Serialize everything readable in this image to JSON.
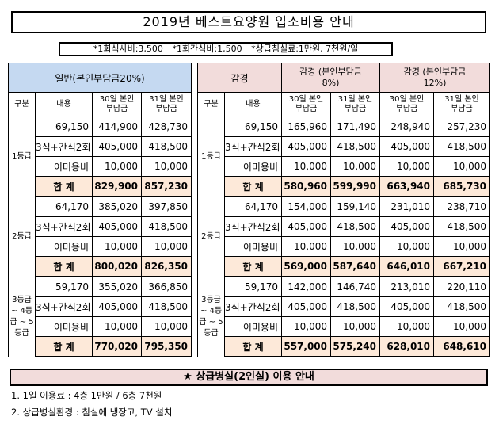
{
  "title": "2019년 베스트요양원 입소비용 안내",
  "notes": [
    "*1회식사비:3,500",
    "*1회간식비:1,500",
    "*상급침실료:1만원, 7천원/일"
  ],
  "left": {
    "group_header": "일반(본인부담금20%)",
    "col_headers": [
      "구분",
      "내용",
      "30일 본인부담금",
      "31일 본인부담금"
    ],
    "grades": [
      {
        "label": "1등급",
        "rows": [
          [
            "69,150",
            "414,900",
            "428,730"
          ],
          [
            "3식+간식2회",
            "405,000",
            "418,500"
          ],
          [
            "이미용비",
            "10,000",
            "10,000"
          ]
        ],
        "total": [
          "합 계",
          "829,900",
          "857,230"
        ]
      },
      {
        "label": "2등급",
        "rows": [
          [
            "64,170",
            "385,020",
            "397,850"
          ],
          [
            "3식+간식2회",
            "405,000",
            "418,500"
          ],
          [
            "이미용비",
            "10,000",
            "10,000"
          ]
        ],
        "total": [
          "합 계",
          "800,020",
          "826,350"
        ]
      },
      {
        "label": "3등급 ~ 4등급 ~ 5등급",
        "rows": [
          [
            "59,170",
            "355,020",
            "366,850"
          ],
          [
            "3식+간식2회",
            "405,000",
            "418,500"
          ],
          [
            "이미용비",
            "10,000",
            "10,000"
          ]
        ],
        "total": [
          "합 계",
          "770,020",
          "795,350"
        ]
      }
    ]
  },
  "right": {
    "group_header_main": "감경",
    "group_header_8": "감경 (본인부담금 8%)",
    "group_header_12": "감경 (본인부담금12%)",
    "col_headers": [
      "구분",
      "내용",
      "30일 본인부담금",
      "31일 본인부담금",
      "30일 본인부담금",
      "31일 본인부담금"
    ],
    "grades": [
      {
        "label": "1등급",
        "rows": [
          [
            "69,150",
            "165,960",
            "171,490",
            "248,940",
            "257,230"
          ],
          [
            "3식+간식2회",
            "405,000",
            "418,500",
            "405,000",
            "418,500"
          ],
          [
            "이미용비",
            "10,000",
            "10,000",
            "10,000",
            "10,000"
          ]
        ],
        "total": [
          "합 계",
          "580,960",
          "599,990",
          "663,940",
          "685,730"
        ]
      },
      {
        "label": "2등급",
        "rows": [
          [
            "64,170",
            "154,000",
            "159,140",
            "231,010",
            "238,710"
          ],
          [
            "3식+간식2회",
            "405,000",
            "418,500",
            "405,000",
            "418,500"
          ],
          [
            "이미용비",
            "10,000",
            "10,000",
            "10,000",
            "10,000"
          ]
        ],
        "total": [
          "합 계",
          "569,000",
          "587,640",
          "646,010",
          "667,210"
        ]
      },
      {
        "label": "3등급 ~ 4등급 ~ 5등급",
        "rows": [
          [
            "59,170",
            "142,000",
            "146,740",
            "213,010",
            "220,110"
          ],
          [
            "3식+간식2회",
            "405,000",
            "418,500",
            "405,000",
            "418,500"
          ],
          [
            "이미용비",
            "10,000",
            "10,000",
            "10,000",
            "10,000"
          ]
        ],
        "total": [
          "합 계",
          "557,000",
          "575,240",
          "628,010",
          "648,610"
        ]
      }
    ]
  },
  "banner": "★ 상급병실(2인실) 이용 안내",
  "info": [
    "1. 1일 이용료 : 4층 1만원 / 6층 7천원",
    "2. 상급병실환경 : 침실에 냉장고, TV 설치"
  ]
}
